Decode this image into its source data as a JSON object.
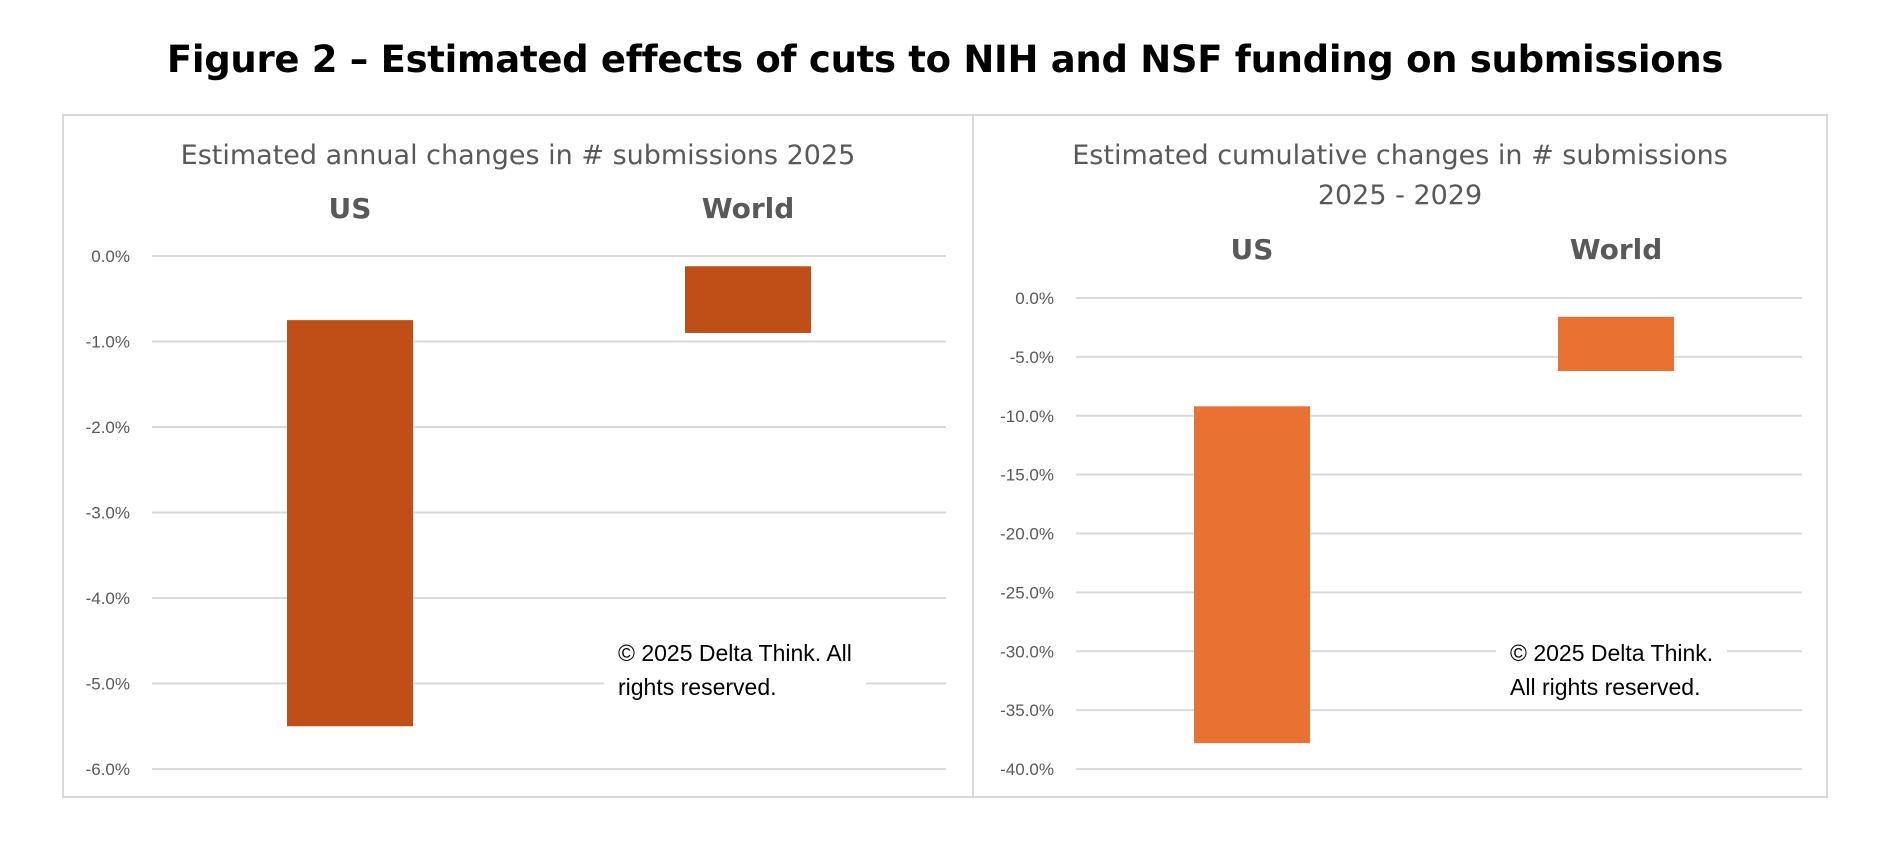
{
  "figure_title": "Figure 2 – Estimated effects of cuts to NIH and NSF funding on submissions",
  "chart_data": [
    {
      "type": "bar",
      "floating": true,
      "title": "Estimated annual changes in # submissions 2025",
      "categories": [
        "US",
        "World"
      ],
      "ranges": [
        [
          -0.75,
          -5.5
        ],
        [
          -0.12,
          -0.9
        ]
      ],
      "ylim": [
        -6.0,
        0.0
      ],
      "yticks": [
        0.0,
        -1.0,
        -2.0,
        -3.0,
        -4.0,
        -5.0,
        -6.0
      ],
      "tick_labels": [
        "0.0%",
        "-1.0%",
        "-2.0%",
        "-3.0%",
        "-4.0%",
        "-5.0%",
        "-6.0%"
      ],
      "bar_color": "#C0504D",
      "bar_fill": "#BF4F16",
      "grid": true,
      "annotation": "© 2025 Delta Think. All rights reserved."
    },
    {
      "type": "bar",
      "floating": true,
      "title": "Estimated cumulative changes in # submissions 2025 - 2029",
      "categories": [
        "US",
        "World"
      ],
      "ranges": [
        [
          -9.2,
          -37.8
        ],
        [
          -1.6,
          -6.2
        ]
      ],
      "ylim": [
        -40.0,
        0.0
      ],
      "yticks": [
        0.0,
        -5.0,
        -10.0,
        -15.0,
        -20.0,
        -25.0,
        -30.0,
        -35.0,
        -40.0
      ],
      "tick_labels": [
        "0.0%",
        "-5.0%",
        "-10.0%",
        "-15.0%",
        "-20.0%",
        "-25.0%",
        "-30.0%",
        "-35.0%",
        "-40.0%"
      ],
      "bar_color": "#E97132",
      "bar_fill": "#E97132",
      "grid": true,
      "annotation": "© 2025 Delta Think. All rights reserved."
    }
  ],
  "panels": [
    {
      "title_lines": [
        "Estimated annual changes in # submissions 2025"
      ],
      "categories": [
        "US",
        "World"
      ],
      "copyright_lines": [
        "© 2025 Delta Think. All",
        "rights reserved."
      ]
    },
    {
      "title_lines": [
        "Estimated cumulative changes in # submissions",
        "2025 - 2029"
      ],
      "categories": [
        "US",
        "World"
      ],
      "copyright_lines": [
        "© 2025 Delta Think.",
        "All rights reserved."
      ]
    }
  ]
}
